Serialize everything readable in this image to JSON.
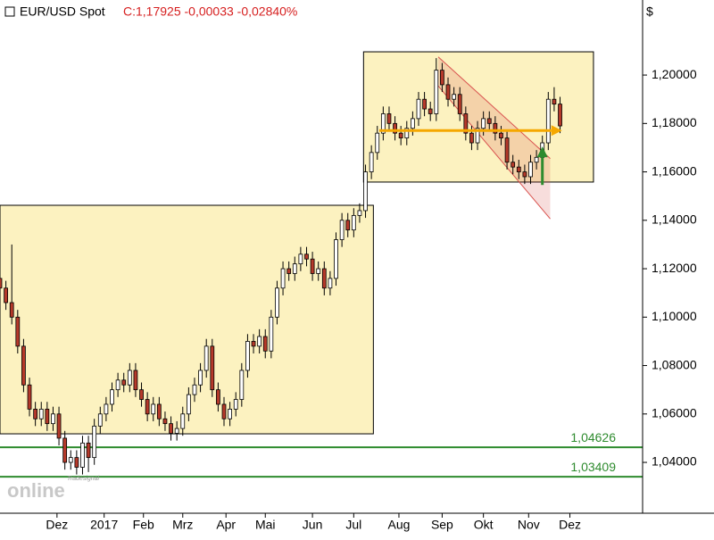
{
  "chart_data": {
    "type": "candlestick",
    "title": "EUR/USD Spot",
    "subtitle": "C:1,17925 -0,00033 -0,02840%",
    "y_axis_label": "$",
    "watermark": "online",
    "watermark_brand": "Tradesignal",
    "xlim": [
      0,
      327
    ],
    "ylim": [
      1.019,
      1.231
    ],
    "xticks": [
      {
        "value": 29,
        "label": "Dez"
      },
      {
        "value": 53,
        "label": "2017"
      },
      {
        "value": 73,
        "label": "Feb"
      },
      {
        "value": 93,
        "label": "Mrz"
      },
      {
        "value": 115,
        "label": "Apr"
      },
      {
        "value": 135,
        "label": "Mai"
      },
      {
        "value": 159,
        "label": "Jun"
      },
      {
        "value": 180,
        "label": "Jul"
      },
      {
        "value": 203,
        "label": "Aug"
      },
      {
        "value": 225,
        "label": "Sep"
      },
      {
        "value": 246,
        "label": "Okt"
      },
      {
        "value": 269,
        "label": "Nov"
      },
      {
        "value": 290,
        "label": "Dez"
      }
    ],
    "yticks": [
      {
        "value": 1.04,
        "label": "1,04000"
      },
      {
        "value": 1.06,
        "label": "1,06000"
      },
      {
        "value": 1.08,
        "label": "1,08000"
      },
      {
        "value": 1.1,
        "label": "1,10000"
      },
      {
        "value": 1.12,
        "label": "1,12000"
      },
      {
        "value": 1.14,
        "label": "1,14000"
      },
      {
        "value": 1.16,
        "label": "1,16000"
      },
      {
        "value": 1.18,
        "label": "1,18000"
      },
      {
        "value": 1.2,
        "label": "1,20000"
      }
    ],
    "up_color": "#ffffff",
    "down_color": "#b5392a",
    "x": [
      0,
      3,
      6,
      9,
      12,
      15,
      18,
      21,
      24,
      27,
      30,
      33,
      36,
      39,
      42,
      45,
      48,
      51,
      54,
      57,
      60,
      63,
      66,
      69,
      72,
      75,
      78,
      81,
      84,
      87,
      90,
      93,
      96,
      99,
      102,
      105,
      108,
      111,
      114,
      117,
      120,
      123,
      126,
      129,
      132,
      135,
      138,
      141,
      144,
      147,
      150,
      153,
      156,
      159,
      162,
      165,
      168,
      171,
      174,
      177,
      180,
      183,
      186,
      189,
      192,
      195,
      198,
      201,
      204,
      207,
      210,
      213,
      216,
      219,
      222,
      225,
      228,
      231,
      234,
      237,
      240,
      243,
      246,
      249,
      252,
      255,
      258,
      261,
      264,
      267,
      270,
      273,
      276,
      279,
      282,
      285
    ],
    "open": [
      1.116,
      1.112,
      1.106,
      1.1,
      1.088,
      1.072,
      1.062,
      1.058,
      1.062,
      1.056,
      1.06,
      1.05,
      1.04,
      1.042,
      1.038,
      1.048,
      1.042,
      1.055,
      1.06,
      1.064,
      1.07,
      1.074,
      1.072,
      1.078,
      1.07,
      1.066,
      1.06,
      1.064,
      1.058,
      1.056,
      1.052,
      1.054,
      1.06,
      1.068,
      1.072,
      1.078,
      1.088,
      1.07,
      1.064,
      1.058,
      1.062,
      1.066,
      1.078,
      1.09,
      1.088,
      1.092,
      1.086,
      1.1,
      1.112,
      1.12,
      1.118,
      1.122,
      1.126,
      1.124,
      1.118,
      1.12,
      1.112,
      1.116,
      1.132,
      1.14,
      1.136,
      1.142,
      1.144,
      1.16,
      1.168,
      1.176,
      1.184,
      1.18,
      1.176,
      1.174,
      1.178,
      1.182,
      1.19,
      1.186,
      1.184,
      1.202,
      1.196,
      1.19,
      1.192,
      1.184,
      1.176,
      1.172,
      1.178,
      1.182,
      1.18,
      1.176,
      1.174,
      1.164,
      1.162,
      1.16,
      1.158,
      1.164,
      1.166,
      1.172,
      1.19,
      1.188
    ],
    "high": [
      1.119,
      1.115,
      1.13,
      1.103,
      1.091,
      1.075,
      1.065,
      1.065,
      1.065,
      1.063,
      1.063,
      1.053,
      1.045,
      1.045,
      1.051,
      1.051,
      1.058,
      1.063,
      1.067,
      1.073,
      1.077,
      1.077,
      1.081,
      1.081,
      1.073,
      1.069,
      1.067,
      1.067,
      1.061,
      1.059,
      1.057,
      1.063,
      1.071,
      1.075,
      1.081,
      1.091,
      1.091,
      1.073,
      1.067,
      1.065,
      1.069,
      1.081,
      1.093,
      1.093,
      1.095,
      1.095,
      1.103,
      1.115,
      1.123,
      1.123,
      1.125,
      1.129,
      1.129,
      1.127,
      1.123,
      1.123,
      1.119,
      1.135,
      1.143,
      1.143,
      1.145,
      1.147,
      1.163,
      1.171,
      1.179,
      1.187,
      1.187,
      1.183,
      1.179,
      1.181,
      1.185,
      1.193,
      1.193,
      1.189,
      1.207,
      1.205,
      1.199,
      1.195,
      1.195,
      1.187,
      1.179,
      1.181,
      1.185,
      1.185,
      1.183,
      1.179,
      1.177,
      1.167,
      1.165,
      1.163,
      1.167,
      1.169,
      1.175,
      1.193,
      1.195,
      1.191
    ],
    "low": [
      1.109,
      1.103,
      1.097,
      1.085,
      1.069,
      1.059,
      1.055,
      1.055,
      1.053,
      1.053,
      1.047,
      1.037,
      1.037,
      1.035,
      1.035,
      1.036,
      1.039,
      1.052,
      1.057,
      1.061,
      1.067,
      1.069,
      1.069,
      1.067,
      1.063,
      1.057,
      1.057,
      1.055,
      1.053,
      1.049,
      1.049,
      1.051,
      1.057,
      1.065,
      1.069,
      1.075,
      1.067,
      1.061,
      1.055,
      1.055,
      1.059,
      1.063,
      1.075,
      1.085,
      1.085,
      1.083,
      1.083,
      1.097,
      1.109,
      1.115,
      1.115,
      1.119,
      1.121,
      1.115,
      1.115,
      1.109,
      1.109,
      1.113,
      1.129,
      1.133,
      1.133,
      1.139,
      1.141,
      1.157,
      1.165,
      1.173,
      1.177,
      1.173,
      1.171,
      1.171,
      1.175,
      1.179,
      1.183,
      1.181,
      1.181,
      1.193,
      1.187,
      1.187,
      1.181,
      1.173,
      1.169,
      1.169,
      1.175,
      1.177,
      1.173,
      1.171,
      1.161,
      1.159,
      1.157,
      1.155,
      1.155,
      1.161,
      1.163,
      1.169,
      1.185,
      1.176
    ],
    "close": [
      1.112,
      1.106,
      1.1,
      1.088,
      1.072,
      1.062,
      1.058,
      1.062,
      1.056,
      1.06,
      1.05,
      1.04,
      1.042,
      1.038,
      1.048,
      1.042,
      1.055,
      1.06,
      1.064,
      1.07,
      1.074,
      1.072,
      1.078,
      1.07,
      1.066,
      1.06,
      1.064,
      1.058,
      1.056,
      1.052,
      1.054,
      1.06,
      1.068,
      1.072,
      1.078,
      1.088,
      1.07,
      1.064,
      1.058,
      1.062,
      1.066,
      1.078,
      1.09,
      1.088,
      1.092,
      1.086,
      1.1,
      1.112,
      1.12,
      1.118,
      1.122,
      1.126,
      1.124,
      1.118,
      1.12,
      1.112,
      1.116,
      1.132,
      1.14,
      1.136,
      1.142,
      1.144,
      1.16,
      1.168,
      1.176,
      1.184,
      1.18,
      1.176,
      1.174,
      1.178,
      1.182,
      1.19,
      1.186,
      1.184,
      1.202,
      1.196,
      1.19,
      1.192,
      1.184,
      1.176,
      1.172,
      1.178,
      1.182,
      1.18,
      1.176,
      1.174,
      1.164,
      1.162,
      1.16,
      1.158,
      1.164,
      1.166,
      1.172,
      1.19,
      1.188,
      1.179
    ],
    "hlines": [
      {
        "value": 1.04626,
        "label": "1,04626",
        "color": "#2e8b2e"
      },
      {
        "value": 1.03409,
        "label": "1,03409",
        "color": "#2e8b2e"
      }
    ],
    "zones": [
      {
        "x": [
          0,
          190
        ],
        "y": [
          1.0518,
          1.1462
        ],
        "color": "#fcf2c0"
      },
      {
        "x": [
          185,
          302
        ],
        "y": [
          1.1558,
          1.2096
        ],
        "color": "#fcf2c0"
      }
    ],
    "channel": {
      "x": [
        223,
        280
      ],
      "upper": [
        1.2075,
        1.1655
      ],
      "lower": [
        1.1955,
        1.1406
      ],
      "color": "#d9534f"
    },
    "arrows": [
      {
        "x": [
          193,
          286
        ],
        "y": [
          1.1771,
          1.1771
        ],
        "color": "#f5a800"
      },
      {
        "x": [
          276,
          276
        ],
        "y": [
          1.1546,
          1.1705
        ],
        "color": "#2e8b2e"
      }
    ]
  }
}
